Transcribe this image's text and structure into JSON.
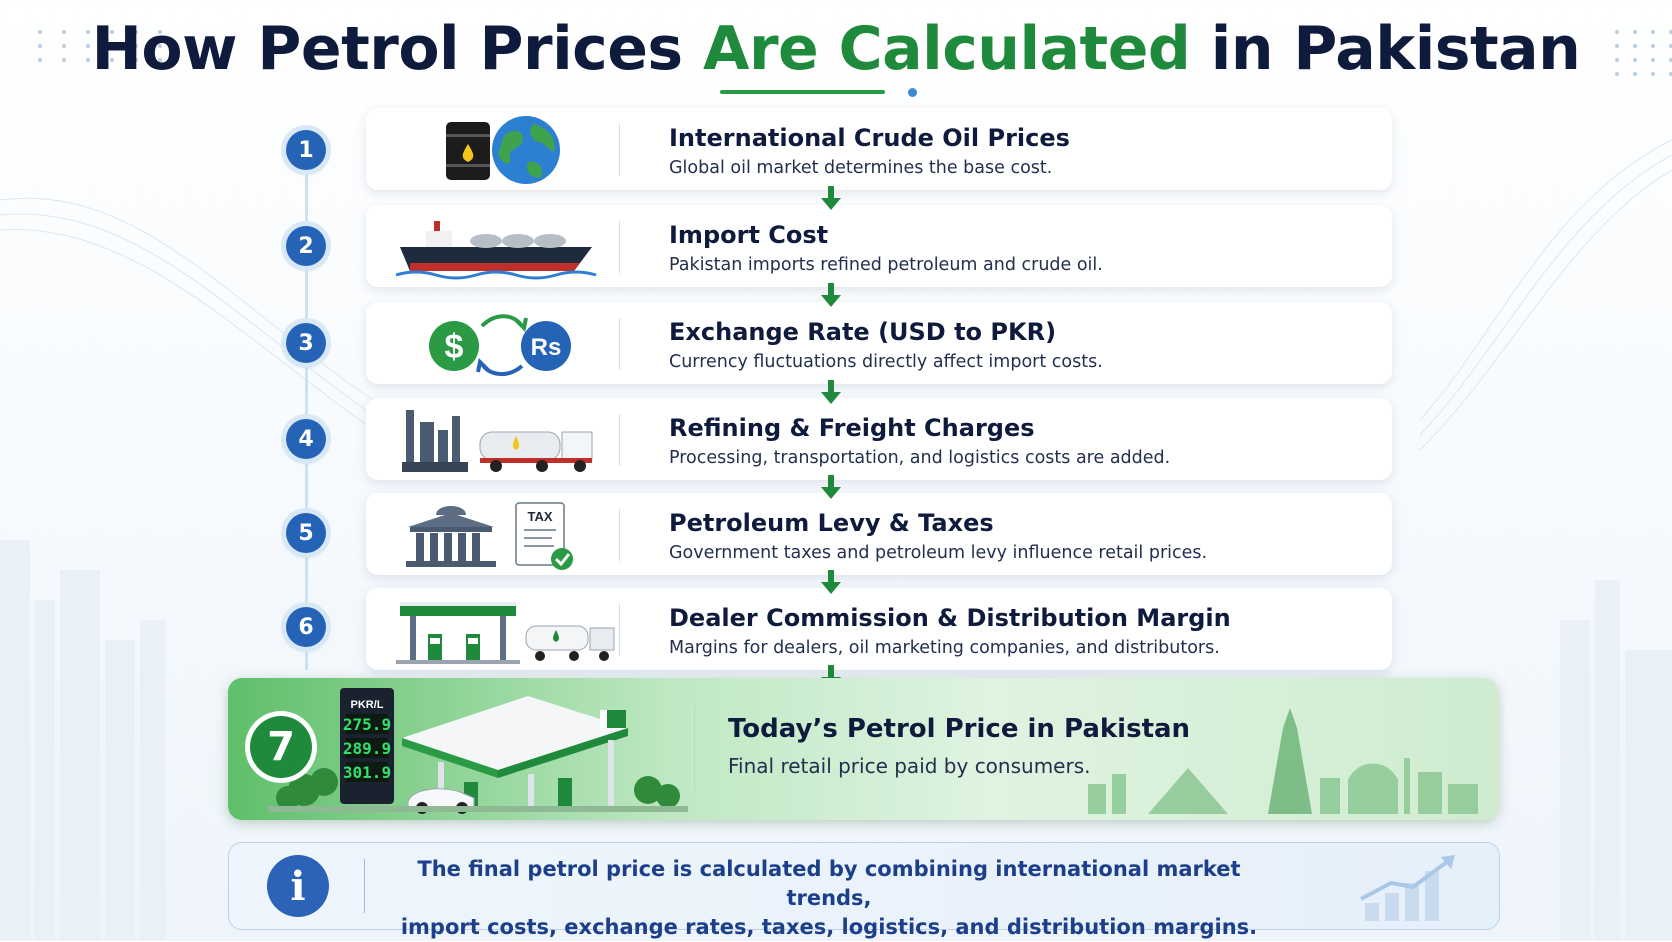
{
  "title": {
    "part1": "How Petrol Prices",
    "part2": "Are Calculated",
    "part3": "in Pakistan"
  },
  "steps": [
    {
      "number": "1",
      "heading": "International Crude Oil Prices",
      "description": "Global oil market determines the base cost.",
      "icons": [
        "oil-barrel-icon",
        "globe-icon"
      ]
    },
    {
      "number": "2",
      "heading": "Import Cost",
      "description": "Pakistan imports refined petroleum and crude oil.",
      "icons": [
        "oil-tanker-ship-icon"
      ]
    },
    {
      "number": "3",
      "heading": "Exchange Rate (USD to PKR)",
      "description": "Currency fluctuations directly affect import costs.",
      "icons": [
        "dollar-coin-icon",
        "exchange-arrows-icon",
        "rupee-coin-icon"
      ],
      "icon_text": {
        "dollar": "$",
        "rupee": "Rs"
      }
    },
    {
      "number": "4",
      "heading": "Refining & Freight Charges",
      "description": "Processing, transportation, and logistics costs are added.",
      "icons": [
        "refinery-icon",
        "fuel-truck-icon"
      ]
    },
    {
      "number": "5",
      "heading": "Petroleum Levy & Taxes",
      "description": "Government taxes and petroleum levy influence retail prices.",
      "icons": [
        "government-building-icon",
        "tax-document-icon"
      ],
      "icon_text": {
        "tax": "TAX"
      }
    },
    {
      "number": "6",
      "heading": "Dealer Commission & Distribution Margin",
      "description": "Margins for dealers, oil marketing companies, and distributors.",
      "icons": [
        "fuel-station-icon",
        "fuel-truck-icon"
      ]
    }
  ],
  "final": {
    "number": "7",
    "heading": "Today’s Petrol Price in Pakistan",
    "description": "Final retail price paid by consumers.",
    "price_board": {
      "unit": "PKR/L",
      "prices": [
        "275.9",
        "289.9",
        "301.9"
      ]
    }
  },
  "info": {
    "line1": "The final petrol price is calculated by combining international market trends,",
    "line2": "import costs, exchange rates, taxes, logistics, and distribution margins."
  },
  "colors": {
    "navy": "#0f1b3d",
    "green": "#1f8a3b",
    "blue": "#2563b6"
  }
}
